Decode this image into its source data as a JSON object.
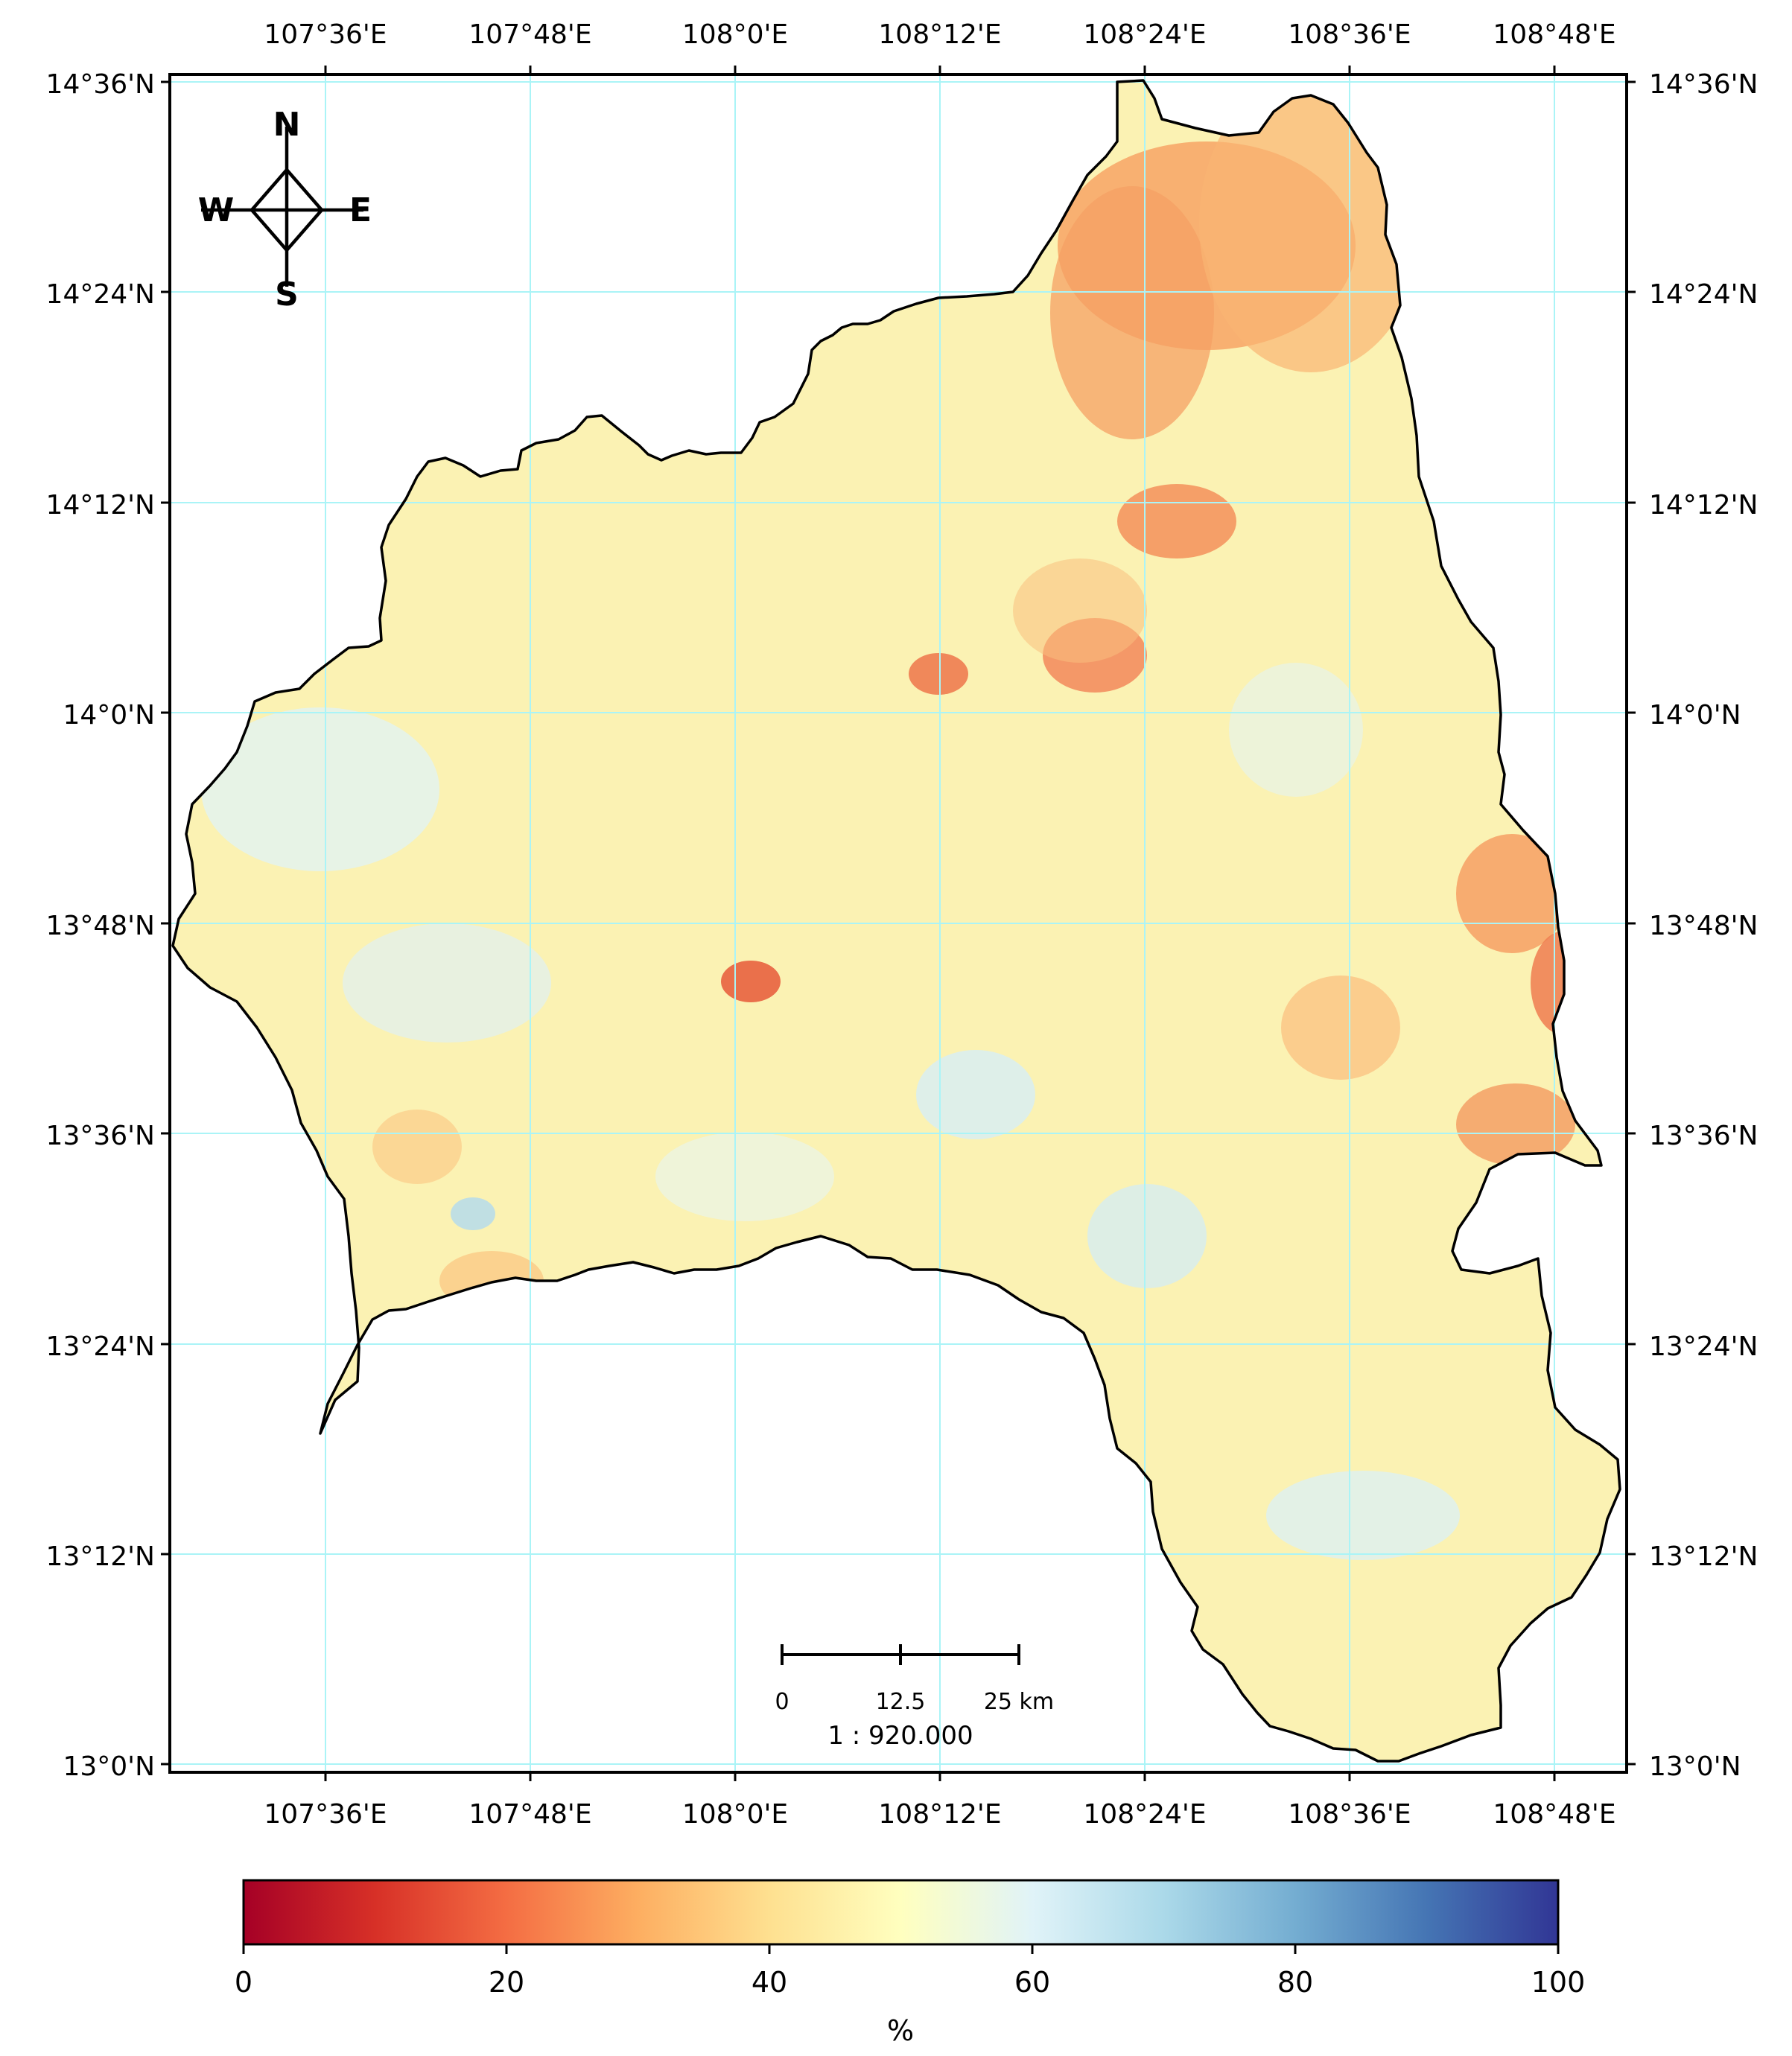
{
  "map": {
    "lon_ticks": [
      "107°36'E",
      "107°48'E",
      "108°0'E",
      "108°12'E",
      "108°24'E",
      "108°36'E",
      "108°48'E"
    ],
    "lat_ticks": [
      "14°36'N",
      "14°24'N",
      "14°12'N",
      "14°0'N",
      "13°48'N",
      "13°36'N",
      "13°24'N",
      "13°12'N",
      "13°0'N"
    ],
    "grid_color": "#aaf4f7",
    "outline_color": "#000000"
  },
  "compass": {
    "north": "N",
    "south": "S",
    "east": "E",
    "west": "W"
  },
  "scale_bar": {
    "labels": [
      "0",
      "12.5",
      "25 km"
    ],
    "ratio": "1 : 920.000"
  },
  "colorbar": {
    "ticks": [
      "0",
      "20",
      "40",
      "60",
      "80",
      "100"
    ],
    "unit": "%",
    "min": 0,
    "max": 100,
    "colormap": [
      "#a50026",
      "#d73027",
      "#f46d43",
      "#fdae61",
      "#fee090",
      "#ffffbf",
      "#e0f3f8",
      "#abd9e9",
      "#74add1",
      "#4575b4",
      "#313695"
    ]
  }
}
